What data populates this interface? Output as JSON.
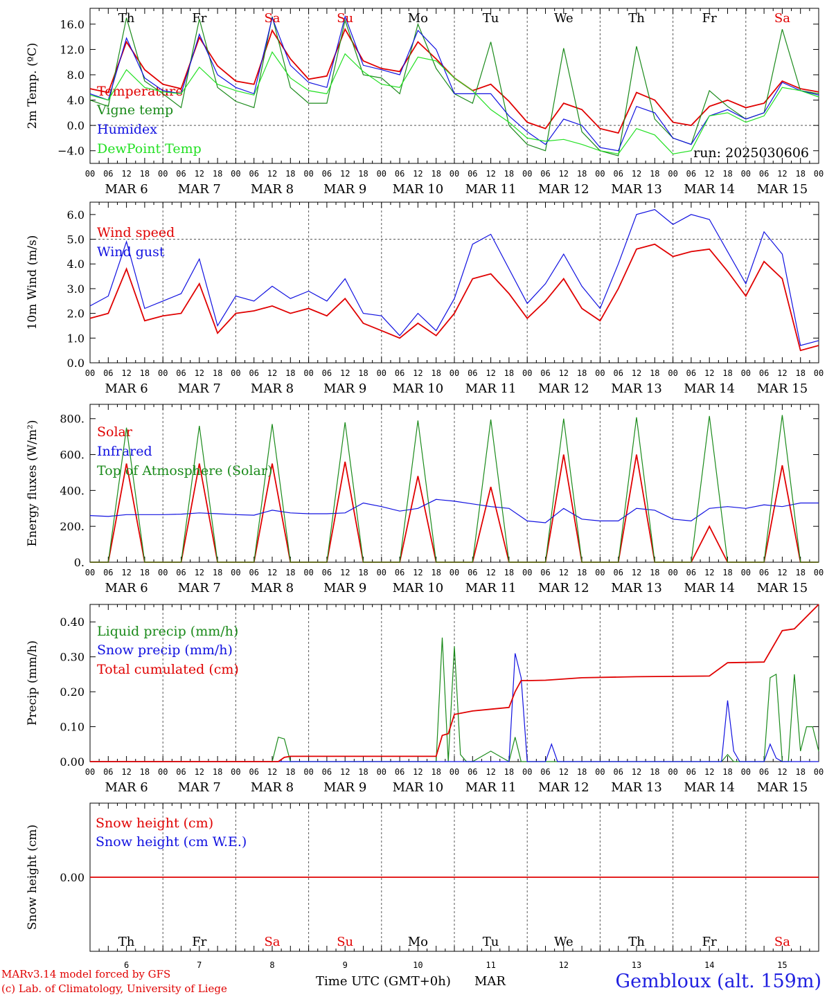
{
  "run_label": "run: 2025030606",
  "time_axis": {
    "hour_labels": [
      "00",
      "06",
      "12",
      "18"
    ],
    "date_labels": [
      "MAR  6",
      "MAR  7",
      "MAR  8",
      "MAR  9",
      "MAR 10",
      "MAR 11",
      "MAR 12",
      "MAR 13",
      "MAR 14",
      "MAR 15"
    ],
    "final_hour_label": "00",
    "weekdays": [
      "Th",
      "Fr",
      "Sa",
      "Su",
      "Mo",
      "Tu",
      "We",
      "Th",
      "Fr",
      "Sa"
    ],
    "weekend": [
      false,
      false,
      true,
      true,
      false,
      false,
      false,
      false,
      false,
      true
    ],
    "day_numbers": [
      "6",
      "7",
      "8",
      "9",
      "10",
      "11",
      "12",
      "13",
      "14",
      "15"
    ]
  },
  "colors": {
    "red": "#e00000",
    "green": "#1a8a1a",
    "blue": "#1010e0",
    "lightgreen": "#22e022",
    "grid": "#555555"
  },
  "footer": {
    "model_line": "MARv3.14 model forced by GFS",
    "copyright_line": "(c) Lab. of Climatology, University of Liege",
    "axis_title": "Time UTC (GMT+0h)",
    "month": "MAR",
    "station": "Gembloux (alt. 159m)"
  },
  "chart_data": [
    {
      "type": "line",
      "ylabel": "2m Temp. (ºC)",
      "ylim": [
        -6,
        18.5
      ],
      "yticks": [
        -4,
        0,
        4,
        8,
        12,
        16
      ],
      "ytick_labels": [
        "−4.0",
        "0.0",
        "4.0",
        "8.0",
        "12.0",
        "16.0"
      ],
      "dashed_y": [
        0
      ],
      "series": [
        {
          "name": "Temperature",
          "color": "red",
          "x": [
            0,
            6,
            12,
            18,
            24,
            30,
            36,
            42,
            48,
            54,
            60,
            66,
            72,
            78,
            84,
            90,
            96,
            102,
            108,
            114,
            120,
            126,
            132,
            138,
            144,
            150,
            156,
            162,
            168,
            174,
            180,
            186,
            192,
            198,
            204,
            210,
            216,
            222,
            228,
            234,
            240
          ],
          "values": [
            5.8,
            5.2,
            13.2,
            8.8,
            6.5,
            5.8,
            13.9,
            9.4,
            7.0,
            6.5,
            15.0,
            10.5,
            7.3,
            7.8,
            15.2,
            10.2,
            9.0,
            8.5,
            13.2,
            10.5,
            7.5,
            5.5,
            6.5,
            3.8,
            0.5,
            -0.5,
            3.5,
            2.5,
            -0.5,
            -1.2,
            5.2,
            4.0,
            0.5,
            0.0,
            3.0,
            4.0,
            2.8,
            3.5,
            7.0,
            5.8,
            5.3
          ]
        },
        {
          "name": "Vigne temp",
          "color": "green",
          "x": [
            0,
            6,
            12,
            18,
            24,
            30,
            36,
            42,
            48,
            54,
            60,
            66,
            72,
            78,
            84,
            90,
            96,
            102,
            108,
            114,
            120,
            126,
            132,
            138,
            144,
            150,
            156,
            162,
            168,
            174,
            180,
            186,
            192,
            198,
            204,
            210,
            216,
            222,
            228,
            234,
            240
          ],
          "values": [
            4.0,
            3.0,
            17.0,
            7.0,
            5.0,
            2.8,
            16.8,
            6.0,
            3.8,
            2.8,
            17.2,
            6.0,
            3.5,
            3.5,
            16.6,
            8.0,
            7.5,
            5.0,
            16.0,
            9.0,
            5.0,
            3.5,
            13.2,
            0.0,
            -3.0,
            -4.0,
            12.2,
            -1.0,
            -4.0,
            -4.8,
            12.5,
            1.0,
            -2.0,
            -3.0,
            5.5,
            3.0,
            1.0,
            2.0,
            15.2,
            5.5,
            5.0
          ]
        },
        {
          "name": "Humidex",
          "color": "blue",
          "x": [
            0,
            6,
            12,
            18,
            24,
            30,
            36,
            42,
            48,
            54,
            60,
            66,
            72,
            78,
            84,
            90,
            96,
            102,
            108,
            114,
            120,
            126,
            132,
            138,
            144,
            150,
            156,
            162,
            168,
            174,
            180,
            186,
            192,
            198,
            204,
            210,
            216,
            222,
            228,
            234,
            240
          ],
          "values": [
            5.0,
            4.0,
            13.8,
            7.5,
            5.5,
            5.0,
            14.4,
            8.0,
            6.0,
            5.0,
            17.0,
            9.5,
            6.8,
            6.0,
            17.2,
            9.5,
            8.8,
            8.0,
            15.0,
            12.0,
            5.0,
            5.0,
            5.0,
            1.5,
            -1.0,
            -3.0,
            1.0,
            0.0,
            -3.5,
            -4.0,
            3.0,
            2.0,
            -2.0,
            -3.0,
            1.5,
            2.5,
            1.0,
            2.0,
            6.8,
            5.5,
            4.8
          ]
        },
        {
          "name": "DewPoint Temp",
          "color": "lightgreen",
          "x": [
            0,
            6,
            12,
            18,
            24,
            30,
            36,
            42,
            48,
            54,
            60,
            66,
            72,
            78,
            84,
            90,
            96,
            102,
            108,
            114,
            120,
            126,
            132,
            138,
            144,
            150,
            156,
            162,
            168,
            174,
            180,
            186,
            192,
            198,
            204,
            210,
            216,
            222,
            228,
            234,
            240
          ],
          "values": [
            4.8,
            4.0,
            8.8,
            6.0,
            5.3,
            5.0,
            9.2,
            6.5,
            5.5,
            4.8,
            11.6,
            7.5,
            5.5,
            5.0,
            11.3,
            8.5,
            6.5,
            6.0,
            10.8,
            10.2,
            7.5,
            5.5,
            2.5,
            0.5,
            -2.0,
            -2.5,
            -2.2,
            -3.0,
            -4.0,
            -4.5,
            -0.5,
            -1.5,
            -4.5,
            -4.0,
            1.5,
            2.0,
            0.5,
            1.5,
            6.0,
            5.5,
            4.5
          ]
        }
      ]
    },
    {
      "type": "line",
      "ylabel": "10m Wind (m/s)",
      "ylim": [
        0,
        6.5
      ],
      "yticks": [
        0,
        1,
        2,
        3,
        4,
        5,
        6
      ],
      "ytick_labels": [
        "0.0",
        "1.0",
        "2.0",
        "3.0",
        "4.0",
        "5.0",
        "6.0"
      ],
      "dashed_y": [
        5
      ],
      "series": [
        {
          "name": "Wind speed",
          "color": "red",
          "x": [
            0,
            6,
            12,
            18,
            24,
            30,
            36,
            42,
            48,
            54,
            60,
            66,
            72,
            78,
            84,
            90,
            96,
            102,
            108,
            114,
            120,
            126,
            132,
            138,
            144,
            150,
            156,
            162,
            168,
            174,
            180,
            186,
            192,
            198,
            204,
            210,
            216,
            222,
            228,
            234,
            240
          ],
          "values": [
            1.8,
            2.0,
            3.8,
            1.7,
            1.9,
            2.0,
            3.2,
            1.2,
            2.0,
            2.1,
            2.3,
            2.0,
            2.2,
            1.9,
            2.6,
            1.6,
            1.3,
            1.0,
            1.6,
            1.1,
            2.0,
            3.4,
            3.6,
            2.8,
            1.8,
            2.5,
            3.4,
            2.2,
            1.7,
            3.0,
            4.6,
            4.8,
            4.3,
            4.5,
            4.6,
            3.7,
            2.7,
            4.1,
            3.4,
            0.5,
            0.7
          ]
        },
        {
          "name": "Wind gust",
          "color": "blue",
          "x": [
            0,
            6,
            12,
            18,
            24,
            30,
            36,
            42,
            48,
            54,
            60,
            66,
            72,
            78,
            84,
            90,
            96,
            102,
            108,
            114,
            120,
            126,
            132,
            138,
            144,
            150,
            156,
            162,
            168,
            174,
            180,
            186,
            192,
            198,
            204,
            210,
            216,
            222,
            228,
            234,
            240
          ],
          "values": [
            2.3,
            2.7,
            4.9,
            2.2,
            2.5,
            2.8,
            4.2,
            1.5,
            2.7,
            2.5,
            3.1,
            2.6,
            2.9,
            2.5,
            3.4,
            2.0,
            1.9,
            1.1,
            2.0,
            1.3,
            2.6,
            4.8,
            5.2,
            3.8,
            2.4,
            3.2,
            4.4,
            3.1,
            2.2,
            4.0,
            6.0,
            6.2,
            5.6,
            6.0,
            5.8,
            4.5,
            3.2,
            5.3,
            4.4,
            0.7,
            0.9
          ]
        }
      ]
    },
    {
      "type": "line",
      "ylabel": "Energy fluxes (W/m²)",
      "ylim": [
        0,
        880
      ],
      "yticks": [
        0,
        200,
        400,
        600,
        800
      ],
      "ytick_labels": [
        "0.",
        "200.",
        "400.",
        "600.",
        "800."
      ],
      "dashed_y": [],
      "series": [
        {
          "name": "Solar",
          "color": "red",
          "x": [
            0,
            6,
            12,
            18,
            24,
            30,
            36,
            42,
            48,
            54,
            60,
            66,
            72,
            78,
            84,
            90,
            96,
            102,
            108,
            114,
            120,
            126,
            132,
            138,
            144,
            150,
            156,
            162,
            168,
            174,
            180,
            186,
            192,
            198,
            204,
            210,
            216,
            222,
            228,
            234,
            240
          ],
          "values": [
            0,
            0,
            550,
            0,
            0,
            0,
            550,
            0,
            0,
            0,
            550,
            0,
            0,
            0,
            560,
            0,
            0,
            0,
            480,
            0,
            0,
            0,
            420,
            0,
            0,
            0,
            600,
            0,
            0,
            0,
            600,
            0,
            0,
            0,
            200,
            0,
            0,
            0,
            540,
            0,
            0
          ]
        },
        {
          "name": "Infrared",
          "color": "blue",
          "x": [
            0,
            6,
            12,
            18,
            24,
            30,
            36,
            42,
            48,
            54,
            60,
            66,
            72,
            78,
            84,
            90,
            96,
            102,
            108,
            114,
            120,
            126,
            132,
            138,
            144,
            150,
            156,
            162,
            168,
            174,
            180,
            186,
            192,
            198,
            204,
            210,
            216,
            222,
            228,
            234,
            240
          ],
          "values": [
            260,
            255,
            265,
            265,
            265,
            268,
            275,
            270,
            265,
            262,
            290,
            275,
            270,
            270,
            275,
            330,
            310,
            285,
            300,
            350,
            340,
            325,
            310,
            300,
            230,
            220,
            300,
            240,
            230,
            230,
            300,
            290,
            240,
            230,
            300,
            310,
            300,
            320,
            310,
            330,
            330
          ]
        },
        {
          "name": "Top of Atmosphere (Solar)",
          "color": "green",
          "x": [
            0,
            6,
            12,
            18,
            24,
            30,
            36,
            42,
            48,
            54,
            60,
            66,
            72,
            78,
            84,
            90,
            96,
            102,
            108,
            114,
            120,
            126,
            132,
            138,
            144,
            150,
            156,
            162,
            168,
            174,
            180,
            186,
            192,
            198,
            204,
            210,
            216,
            222,
            228,
            234,
            240
          ],
          "values": [
            0,
            0,
            750,
            0,
            0,
            0,
            760,
            0,
            0,
            0,
            770,
            0,
            0,
            0,
            780,
            0,
            0,
            0,
            790,
            0,
            0,
            0,
            795,
            0,
            0,
            0,
            800,
            0,
            0,
            0,
            808,
            0,
            0,
            0,
            815,
            0,
            0,
            0,
            820,
            0,
            0
          ]
        }
      ]
    },
    {
      "type": "line",
      "ylabel": "Precip (mm/h)",
      "ylim": [
        0,
        0.45
      ],
      "yticks": [
        0,
        0.1,
        0.2,
        0.3,
        0.4
      ],
      "ytick_labels": [
        "0.00",
        "0.10",
        "0.20",
        "0.30",
        "0.40"
      ],
      "dashed_y": [],
      "series": [
        {
          "name": "Liquid precip (mm/h)",
          "color": "green",
          "x": [
            0,
            60,
            62,
            64,
            66,
            114,
            116,
            118,
            120,
            122,
            124,
            126,
            132,
            138,
            140,
            142,
            144,
            208,
            210,
            212,
            214,
            222,
            224,
            226,
            228,
            230,
            232,
            234,
            236,
            238,
            240
          ],
          "values": [
            0,
            0,
            0.07,
            0.065,
            0,
            0,
            0.355,
            0,
            0.33,
            0.02,
            0,
            0,
            0.03,
            0,
            0.07,
            0,
            0,
            0,
            0.02,
            0,
            0,
            0,
            0.24,
            0.25,
            0,
            0,
            0.25,
            0.03,
            0.1,
            0.1,
            0.03
          ]
        },
        {
          "name": "Snow precip (mm/h)",
          "color": "blue",
          "x": [
            0,
            138,
            140,
            142,
            144,
            150,
            152,
            154,
            208,
            210,
            212,
            214,
            222,
            224,
            226,
            228,
            240
          ],
          "values": [
            0,
            0,
            0.31,
            0.24,
            0,
            0,
            0.05,
            0,
            0,
            0.175,
            0.03,
            0,
            0,
            0.05,
            0.01,
            0,
            0
          ]
        },
        {
          "name": "Total cumulated (cm)",
          "color": "red",
          "x": [
            0,
            62,
            64,
            66,
            114,
            116,
            118,
            120,
            126,
            132,
            138,
            140,
            142,
            144,
            150,
            162,
            180,
            204,
            210,
            222,
            228,
            232,
            240
          ],
          "values": [
            0,
            0,
            0.012,
            0.015,
            0.015,
            0.075,
            0.08,
            0.135,
            0.145,
            0.15,
            0.155,
            0.2,
            0.232,
            0.232,
            0.233,
            0.24,
            0.243,
            0.245,
            0.283,
            0.285,
            0.375,
            0.38,
            0.45
          ]
        }
      ]
    },
    {
      "type": "line",
      "ylabel": "Snow height (cm)",
      "ylim": [
        -1,
        1
      ],
      "yticks": [
        0
      ],
      "ytick_labels": [
        "0.00"
      ],
      "dashed_y": [],
      "series": [
        {
          "name": "Snow height (cm)",
          "color": "red",
          "x": [
            0,
            240
          ],
          "values": [
            0,
            0
          ]
        },
        {
          "name": "Snow height (cm W.E.)",
          "color": "blue",
          "x": [],
          "values": []
        }
      ]
    }
  ]
}
